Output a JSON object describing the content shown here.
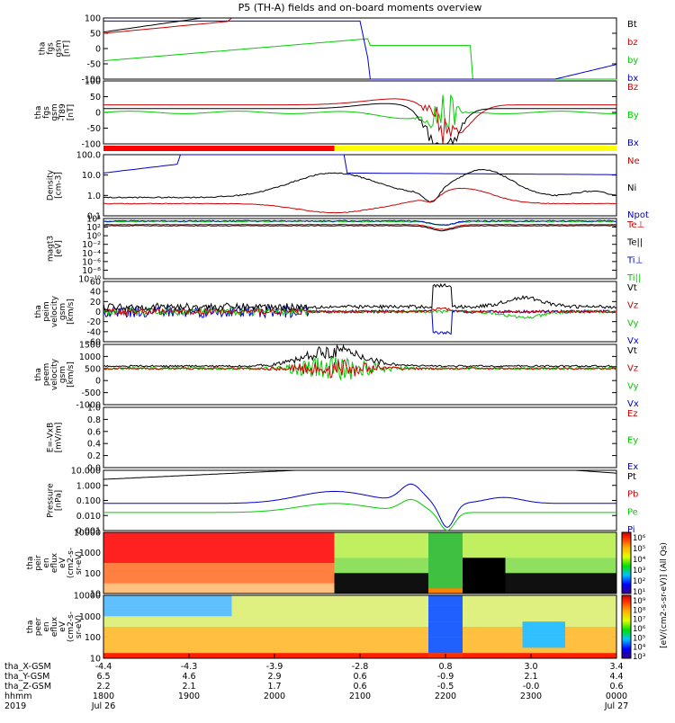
{
  "chart_data": {
    "type": "line",
    "title": "P5 (TH-A) fields and on-board moments overview",
    "time_axis": {
      "rows": [
        {
          "label": "tha_X-GSM",
          "values": [
            "-4.4",
            "-4.3",
            "-3.9",
            "-2.8",
            "0.8",
            "3.0",
            "3.4"
          ]
        },
        {
          "label": "tha_Y-GSM",
          "values": [
            "6.5",
            "4.6",
            "2.9",
            "0.6",
            "-0.9",
            "2.1",
            "4.4"
          ]
        },
        {
          "label": "tha_Z-GSM",
          "values": [
            "2.2",
            "2.1",
            "1.7",
            "0.6",
            "-0.5",
            "-0.0",
            "0.6"
          ]
        },
        {
          "label": "hhmm",
          "values": [
            "1800",
            "1900",
            "2000",
            "2100",
            "2200",
            "2300",
            "0000"
          ]
        },
        {
          "label": "2019",
          "values": [
            "Jul 26",
            "",
            "",
            "",
            "",
            "",
            "Jul 27"
          ]
        }
      ]
    },
    "panels": [
      {
        "id": "fgs-gsm",
        "ylabel": [
          "tha",
          "fgs",
          "gsm",
          "[nT]"
        ],
        "ticks": [
          "100",
          "50",
          "0",
          "-50",
          "-100"
        ],
        "series": [
          {
            "name": "Bt",
            "color": "#000000"
          },
          {
            "name": "bz",
            "color": "#cc0000"
          },
          {
            "name": "by",
            "color": "#00cc00"
          },
          {
            "name": "bx",
            "color": "#0000cc"
          }
        ]
      },
      {
        "id": "fgs-gsm-t89",
        "ylabel": [
          "tha",
          "fgs",
          "gsm",
          "-T89",
          "[nT]"
        ],
        "ticks": [
          "100",
          "50",
          "0",
          "-50",
          "-100"
        ],
        "series": [
          {
            "name": "Bz",
            "color": "#cc0000"
          },
          {
            "name": "By",
            "color": "#00cc00"
          },
          {
            "name": "Bx",
            "color": "#0000cc"
          }
        ]
      },
      {
        "id": "density",
        "ylabel": [
          "Density",
          "[cm-3]"
        ],
        "ticks": [
          "100.0",
          "10.0",
          "1.0",
          "0.1"
        ],
        "series": [
          {
            "name": "Ne",
            "color": "#cc0000"
          },
          {
            "name": "Ni",
            "color": "#000000"
          },
          {
            "name": "Npot",
            "color": "#0000cc"
          }
        ]
      },
      {
        "id": "temperature",
        "ylabel": [
          "magt3",
          "[eV]"
        ],
        "ticks": [
          "10⁴",
          "10²",
          "10⁰",
          "10⁻²",
          "10⁻⁴",
          "10⁻⁶",
          "10⁻⁸",
          "10⁻¹⁰"
        ],
        "series": [
          {
            "name": "Te⊥",
            "color": "#cc0000"
          },
          {
            "name": "Te||",
            "color": "#000000"
          },
          {
            "name": "Ti⊥",
            "color": "#0000cc"
          },
          {
            "name": "Ti||",
            "color": "#00cc00"
          }
        ]
      },
      {
        "id": "peim-velocity",
        "ylabel": [
          "tha",
          "peim",
          "velocity",
          "gsm",
          "[km/s]"
        ],
        "ticks": [
          "60",
          "40",
          "20",
          "0",
          "-20",
          "-40",
          "-60"
        ],
        "series": [
          {
            "name": "Vt",
            "color": "#000000"
          },
          {
            "name": "Vz",
            "color": "#cc0000"
          },
          {
            "name": "Vy",
            "color": "#00cc00"
          },
          {
            "name": "Vx",
            "color": "#0000cc"
          }
        ]
      },
      {
        "id": "peem-velocity",
        "ylabel": [
          "tha",
          "peem",
          "velocity",
          "gsm",
          "[km/s]"
        ],
        "ticks": [
          "1500",
          "1000",
          "500",
          "0",
          "-500",
          "-1000"
        ],
        "series": [
          {
            "name": "Vt",
            "color": "#000000"
          },
          {
            "name": "Vz",
            "color": "#cc0000"
          },
          {
            "name": "Vy",
            "color": "#00cc00"
          },
          {
            "name": "Vx",
            "color": "#0000cc"
          }
        ]
      },
      {
        "id": "efield",
        "ylabel": [
          "E=-VxB",
          "[mV/m]"
        ],
        "ticks": [
          "1.0",
          "0.8",
          "0.6",
          "0.4",
          "0.2",
          "0.0"
        ],
        "series": [
          {
            "name": "Ez",
            "color": "#cc0000"
          },
          {
            "name": "Ey",
            "color": "#00cc00"
          },
          {
            "name": "Ex",
            "color": "#0000cc"
          }
        ]
      },
      {
        "id": "pressure",
        "ylabel": [
          "Pressure",
          "[nPa]"
        ],
        "ticks": [
          "10.000",
          "1.000",
          "0.100",
          "0.010",
          "0.001"
        ],
        "series": [
          {
            "name": "Pt",
            "color": "#000000"
          },
          {
            "name": "Pb",
            "color": "#cc0000"
          },
          {
            "name": "Pe",
            "color": "#00cc00"
          },
          {
            "name": "Pi",
            "color": "#0000cc"
          }
        ]
      },
      {
        "id": "peir-spec",
        "ylabel": [
          "tha",
          "peir",
          "en",
          "eflux",
          "eV",
          "(cm2-s-",
          "sr-eV)"
        ],
        "ticks": [
          "10000",
          "1000",
          "100",
          "10"
        ]
      },
      {
        "id": "peer-spec",
        "ylabel": [
          "tha",
          "peer",
          "en",
          "eflux",
          "eV",
          "(cm2-s-",
          "sr-eV)"
        ],
        "ticks": [
          "10000",
          "1000",
          "100",
          "10"
        ]
      }
    ],
    "colorbars": [
      {
        "label": "[eV/(cm2-s-sr-eV)] (All Qs)",
        "ticks": [
          "10⁶",
          "10⁵",
          "10⁴",
          "10³",
          "10²",
          "10¹"
        ]
      },
      {
        "label": "[eV/(cm2-s-sr-eV)] (All Qs)",
        "ticks": [
          "10⁹",
          "10⁸",
          "10⁷",
          "10⁶",
          "10⁵",
          "10⁴",
          "10³"
        ]
      }
    ]
  }
}
